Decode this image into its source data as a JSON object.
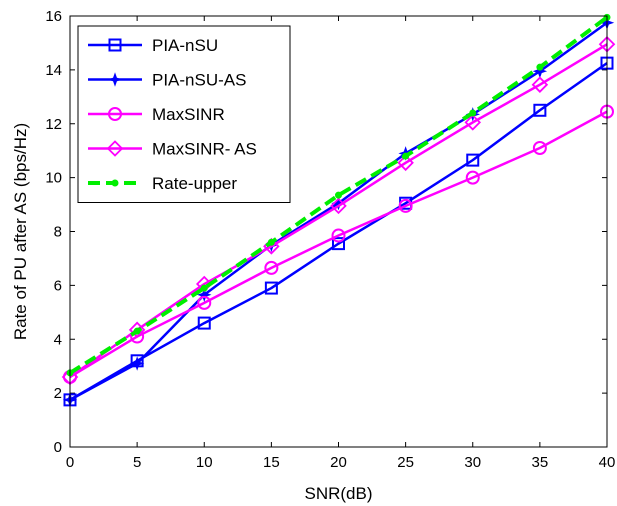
{
  "chart_data": {
    "type": "line",
    "xlabel": "SNR(dB)",
    "ylabel": "Rate of PU after AS (bps/Hz)",
    "xlim": [
      0,
      40
    ],
    "ylim": [
      0,
      16
    ],
    "xticks": [
      0,
      5,
      10,
      15,
      20,
      25,
      30,
      35,
      40
    ],
    "yticks": [
      0,
      2,
      4,
      6,
      8,
      10,
      12,
      14,
      16
    ],
    "grid": false,
    "legend_position": "top-left",
    "x": [
      0,
      5,
      10,
      15,
      20,
      25,
      30,
      35,
      40
    ],
    "series": [
      {
        "name": "PIA-nSU",
        "color": "#0000ff",
        "marker": "square",
        "dash": "solid",
        "values": [
          1.75,
          3.2,
          4.6,
          5.9,
          7.55,
          9.05,
          10.65,
          12.5,
          14.25
        ]
      },
      {
        "name": "PIA-nSU-AS",
        "color": "#0000ff",
        "marker": "star",
        "dash": "solid",
        "values": [
          1.75,
          3.1,
          5.65,
          7.5,
          9.05,
          10.9,
          12.35,
          13.95,
          15.75
        ]
      },
      {
        "name": "MaxSINR",
        "color": "#ff00ff",
        "marker": "circle",
        "dash": "solid",
        "values": [
          2.6,
          4.1,
          5.35,
          6.65,
          7.85,
          8.95,
          10.0,
          11.1,
          12.45
        ]
      },
      {
        "name": "MaxSINR- AS",
        "color": "#ff00ff",
        "marker": "diamond",
        "dash": "solid",
        "values": [
          2.6,
          4.35,
          6.05,
          7.45,
          8.95,
          10.55,
          12.05,
          13.45,
          14.95
        ]
      },
      {
        "name": "Rate-upper",
        "color": "#00ee00",
        "marker": "dot",
        "dash": "dashed",
        "values": [
          2.75,
          4.3,
          5.9,
          7.6,
          9.35,
          10.8,
          12.4,
          14.1,
          15.95
        ]
      }
    ]
  }
}
